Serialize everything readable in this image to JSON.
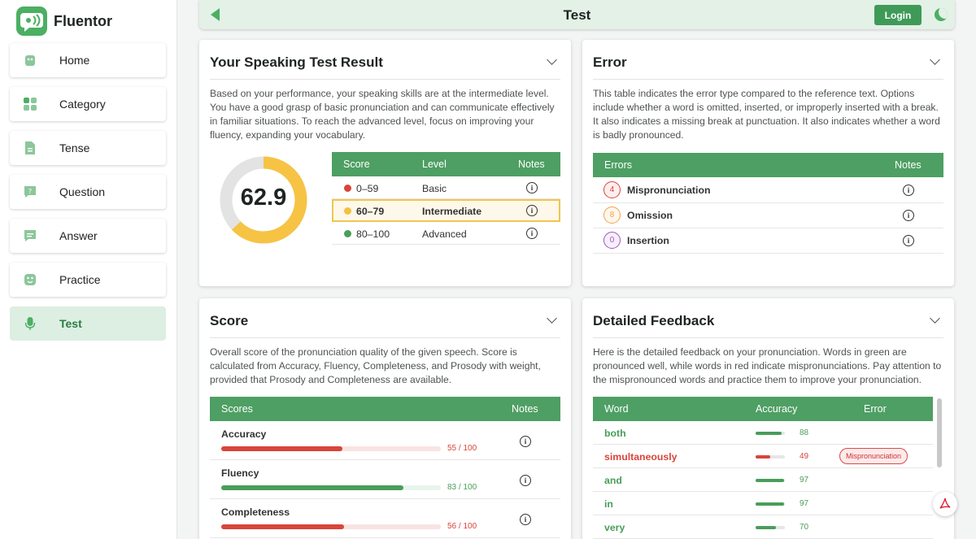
{
  "app": {
    "name": "Fluentor"
  },
  "header": {
    "title": "Test",
    "login_label": "Login"
  },
  "sidebar": {
    "items": [
      {
        "label": "Home",
        "icon": "home-icon",
        "active": false
      },
      {
        "label": "Category",
        "icon": "grid-icon",
        "active": false
      },
      {
        "label": "Tense",
        "icon": "document-icon",
        "active": false
      },
      {
        "label": "Question",
        "icon": "question-bubble-icon",
        "active": false
      },
      {
        "label": "Answer",
        "icon": "answer-bubble-icon",
        "active": false
      },
      {
        "label": "Practice",
        "icon": "smile-icon",
        "active": false
      },
      {
        "label": "Test",
        "icon": "microphone-icon",
        "active": true
      }
    ]
  },
  "result": {
    "title": "Your Speaking Test Result",
    "description": "Based on your performance, your speaking skills are at the intermediate level. You have a good grasp of basic pronunciation and can communicate effectively in familiar situations. To reach the advanced level, focus on improving your fluency, expanding your vocabulary.",
    "score": "62.9",
    "score_value": 62.9,
    "score_max": 100,
    "gauge_color": "#f6c344",
    "table": {
      "headers": [
        "Score",
        "Level",
        "Notes"
      ],
      "rows": [
        {
          "range": "0–59",
          "level": "Basic",
          "color": "#d9443a",
          "highlight": false
        },
        {
          "range": "60–79",
          "level": "Intermediate",
          "color": "#f4c03e",
          "highlight": true
        },
        {
          "range": "80–100",
          "level": "Advanced",
          "color": "#4a9d5a",
          "highlight": false
        }
      ]
    }
  },
  "error": {
    "title": "Error",
    "description": "This table indicates the error type compared to the reference text. Options include whether a word is omitted, inserted, or improperly inserted with a break. It also indicates a missing break at punctuation. It also indicates whether a word is badly pronounced.",
    "headers": [
      "Errors",
      "Notes"
    ],
    "rows": [
      {
        "count": "4",
        "label": "Mispronunciation",
        "color": "#d9443a"
      },
      {
        "count": "8",
        "label": "Omission",
        "color": "#f0a44a"
      },
      {
        "count": "0",
        "label": "Insertion",
        "color": "#9b59b6"
      }
    ]
  },
  "score": {
    "title": "Score",
    "description": "Overall score of the pronunciation quality of the given speech. Score is calculated from Accuracy, Fluency, Completeness, and Prosody with weight, provided that Prosody and Completeness are available.",
    "headers": [
      "Scores",
      "Notes"
    ],
    "rows": [
      {
        "label": "Accuracy",
        "value": 55,
        "text": "55 / 100",
        "color": "#d9443a"
      },
      {
        "label": "Fluency",
        "value": 83,
        "text": "83 / 100",
        "color": "#4a9d5a"
      },
      {
        "label": "Completeness",
        "value": 56,
        "text": "56 / 100",
        "color": "#d9443a"
      }
    ]
  },
  "feedback": {
    "title": "Detailed Feedback",
    "description": "Here is the detailed feedback on your pronunciation. Words in green are pronounced well, while words in red indicate mispronunciations. Pay attention to the mispronounced words and practice them to improve your pronunciation.",
    "headers": [
      "Word",
      "Accuracy",
      "Error"
    ],
    "rows": [
      {
        "word": "both",
        "accuracy": 88,
        "text": "88",
        "error": "",
        "color": "#4a9d5a"
      },
      {
        "word": "simultaneously",
        "accuracy": 49,
        "text": "49",
        "error": "Mispronunciation",
        "color": "#d9443a"
      },
      {
        "word": "and",
        "accuracy": 97,
        "text": "97",
        "error": "",
        "color": "#4a9d5a"
      },
      {
        "word": "in",
        "accuracy": 97,
        "text": "97",
        "error": "",
        "color": "#4a9d5a"
      },
      {
        "word": "very",
        "accuracy": 70,
        "text": "70",
        "error": "",
        "color": "#4a9d5a"
      }
    ]
  }
}
